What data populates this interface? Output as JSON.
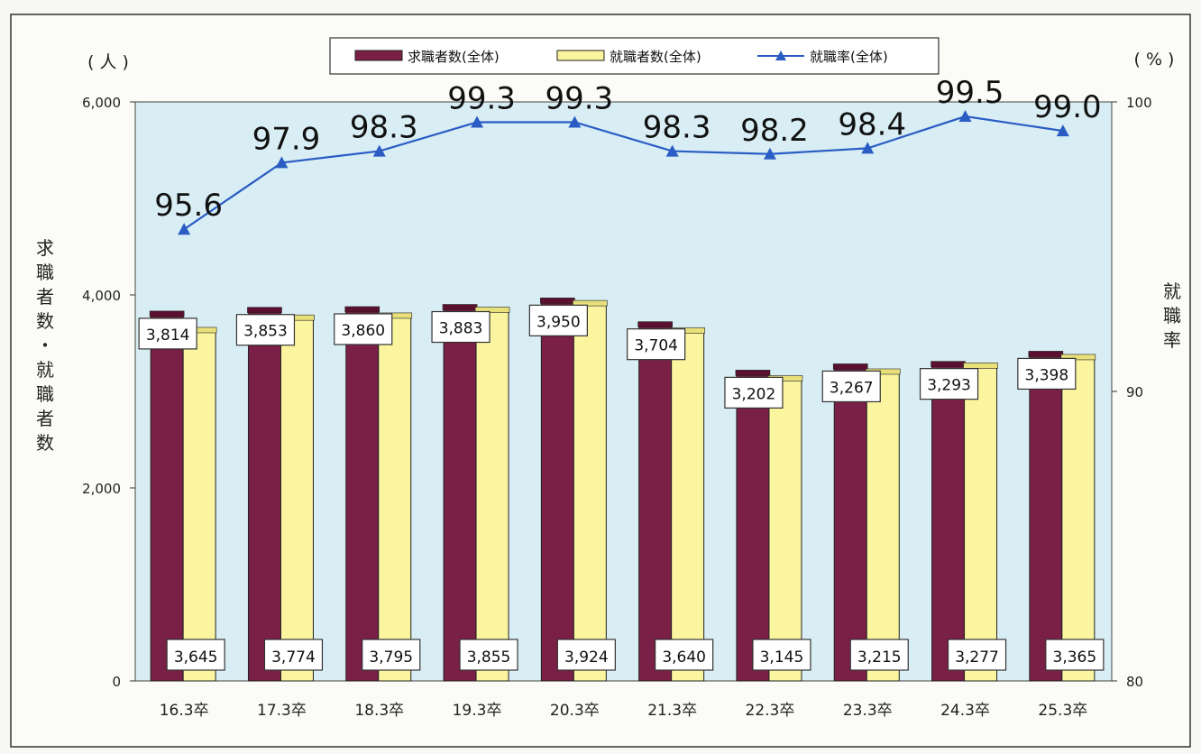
{
  "chart_data": {
    "type": "bar",
    "categories": [
      "16.3卒",
      "17.3卒",
      "18.3卒",
      "19.3卒",
      "20.3卒",
      "21.3卒",
      "22.3卒",
      "23.3卒",
      "24.3卒",
      "25.3卒"
    ],
    "series": [
      {
        "name": "求職者数(全体)",
        "type": "bar",
        "axis": "left",
        "color": "#7a1f45",
        "values": [
          3814,
          3853,
          3860,
          3883,
          3950,
          3704,
          3202,
          3267,
          3293,
          3398
        ],
        "labels": [
          "3,814",
          "3,853",
          "3,860",
          "3,883",
          "3,950",
          "3,704",
          "3,202",
          "3,267",
          "3,293",
          "3,398"
        ]
      },
      {
        "name": "就職者数(全体)",
        "type": "bar",
        "axis": "left",
        "color": "#fbf5a0",
        "values": [
          3645,
          3774,
          3795,
          3855,
          3924,
          3640,
          3145,
          3215,
          3277,
          3365
        ],
        "labels": [
          "3,645",
          "3,774",
          "3,795",
          "3,855",
          "3,924",
          "3,640",
          "3,145",
          "3,215",
          "3,277",
          "3,365"
        ]
      },
      {
        "name": "就職率(全体)",
        "type": "line",
        "axis": "right",
        "color": "#2a5cc4",
        "values": [
          95.6,
          97.9,
          98.3,
          99.3,
          99.3,
          98.3,
          98.2,
          98.4,
          99.5,
          99.0
        ],
        "labels": [
          "95.6",
          "97.9",
          "98.3",
          "99.3",
          "99.3",
          "98.3",
          "98.2",
          "98.4",
          "99.5",
          "99.0"
        ]
      }
    ],
    "y_left": {
      "range": [
        0,
        6000
      ],
      "ticks": [
        0,
        2000,
        4000,
        6000
      ],
      "tick_labels": [
        "0",
        "2,000",
        "4,000",
        "6,000"
      ],
      "unit": "( 人 )",
      "title": "求職者数・就職者数"
    },
    "y_right": {
      "range": [
        80,
        100
      ],
      "ticks": [
        80,
        90,
        100
      ],
      "tick_labels": [
        "80",
        "90",
        "100"
      ],
      "unit": "( % )",
      "title": "就職率"
    },
    "plot_background": "#d8eef4",
    "legend_position": "top-center",
    "grid": false
  }
}
